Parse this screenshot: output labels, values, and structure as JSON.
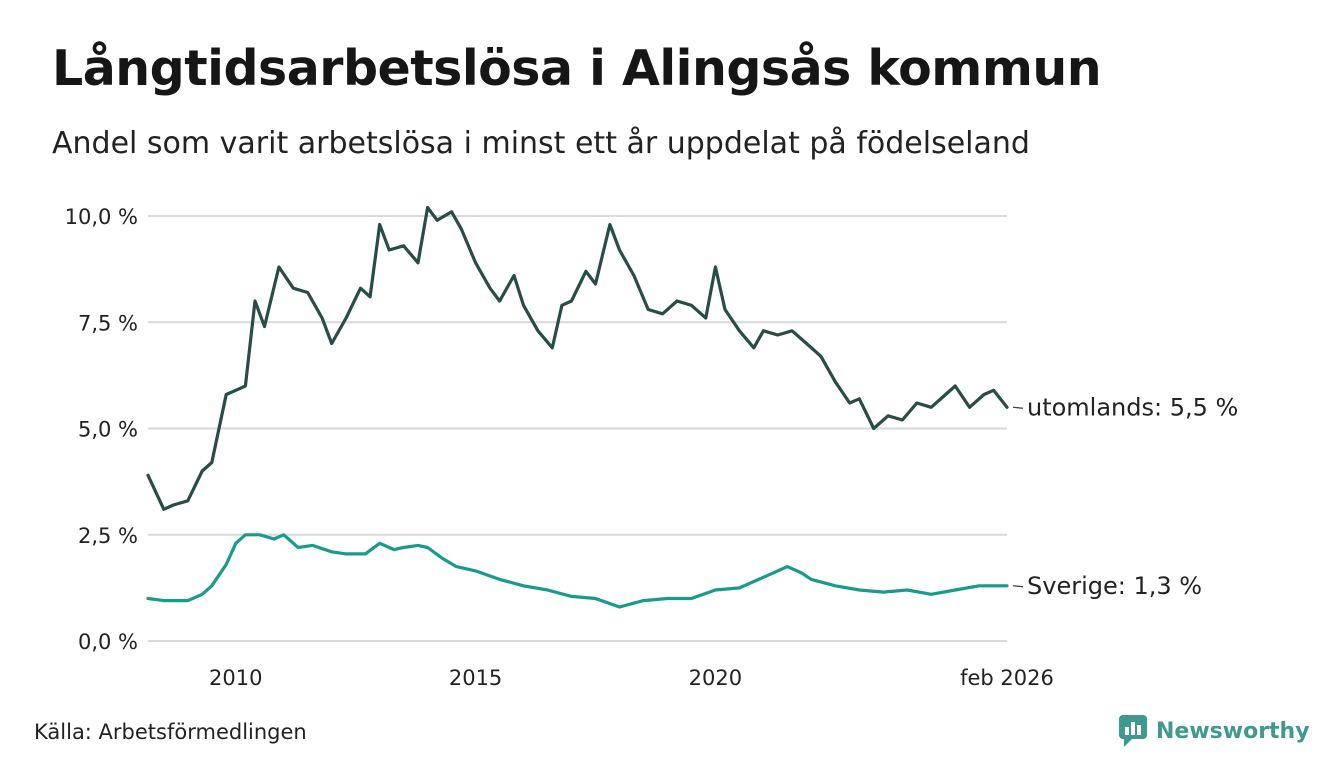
{
  "title": "Långtidsarbetslösa i Alingsås kommun",
  "subtitle": "Andel som varit arbetslösa i minst ett år uppdelat på födelseland",
  "source": "Källa: Arbetsförmedlingen",
  "brand": "Newsworthy",
  "colors": {
    "utomlands": "#284c46",
    "sverige": "#1a9a8a",
    "grid": "#d9d9d9",
    "brand": "#3f9a8d"
  },
  "chart_data": {
    "type": "line",
    "title": "Långtidsarbetslösa i Alingsås kommun",
    "ylabel": "",
    "xlabel": "",
    "ylim": [
      0,
      10
    ],
    "yticks": [
      0,
      2.5,
      5,
      7.5,
      10
    ],
    "ytick_labels": [
      "0,0 %",
      "2,5 %",
      "5,0 %",
      "7,5 %",
      "10,0 %"
    ],
    "xlim": [
      2008.17,
      2026.08
    ],
    "xticks": [
      2010,
      2015,
      2020,
      2026.08
    ],
    "xtick_labels": [
      "2010",
      "2015",
      "2020",
      "feb 2026"
    ],
    "series": [
      {
        "name": "utomlands",
        "end_label": "utomlands: 5,5 %",
        "x": [
          2008.17,
          2008.5,
          2008.7,
          2009.0,
          2009.3,
          2009.5,
          2009.8,
          2010.0,
          2010.2,
          2010.4,
          2010.6,
          2010.9,
          2011.2,
          2011.5,
          2011.8,
          2012.0,
          2012.3,
          2012.6,
          2012.8,
          2013.0,
          2013.2,
          2013.5,
          2013.8,
          2014.0,
          2014.2,
          2014.5,
          2014.7,
          2015.0,
          2015.3,
          2015.5,
          2015.8,
          2016.0,
          2016.3,
          2016.6,
          2016.8,
          2017.0,
          2017.3,
          2017.5,
          2017.8,
          2018.0,
          2018.3,
          2018.6,
          2018.9,
          2019.2,
          2019.5,
          2019.8,
          2020.0,
          2020.2,
          2020.5,
          2020.8,
          2021.0,
          2021.3,
          2021.6,
          2021.9,
          2022.2,
          2022.5,
          2022.8,
          2023.0,
          2023.3,
          2023.6,
          2023.9,
          2024.2,
          2024.5,
          2024.8,
          2025.0,
          2025.3,
          2025.6,
          2025.8,
          2026.08
        ],
        "values": [
          3.9,
          3.1,
          3.2,
          3.3,
          4.0,
          4.2,
          5.8,
          5.9,
          6.0,
          8.0,
          7.4,
          8.8,
          8.3,
          8.2,
          7.6,
          7.0,
          7.6,
          8.3,
          8.1,
          9.8,
          9.2,
          9.3,
          8.9,
          10.2,
          9.9,
          10.1,
          9.7,
          8.9,
          8.3,
          8.0,
          8.6,
          7.9,
          7.3,
          6.9,
          7.9,
          8.0,
          8.7,
          8.4,
          9.8,
          9.2,
          8.6,
          7.8,
          7.7,
          8.0,
          7.9,
          7.6,
          8.8,
          7.8,
          7.3,
          6.9,
          7.3,
          7.2,
          7.3,
          7.0,
          6.7,
          6.1,
          5.6,
          5.7,
          5.0,
          5.3,
          5.2,
          5.6,
          5.5,
          5.8,
          6.0,
          5.5,
          5.8,
          5.9,
          5.5
        ]
      },
      {
        "name": "Sverige",
        "end_label": "Sverige: 1,3 %",
        "x": [
          2008.17,
          2008.5,
          2008.8,
          2009.0,
          2009.3,
          2009.5,
          2009.8,
          2010.0,
          2010.2,
          2010.5,
          2010.8,
          2011.0,
          2011.3,
          2011.6,
          2012.0,
          2012.3,
          2012.7,
          2013.0,
          2013.3,
          2013.5,
          2013.8,
          2014.0,
          2014.3,
          2014.6,
          2015.0,
          2015.5,
          2016.0,
          2016.5,
          2017.0,
          2017.5,
          2018.0,
          2018.5,
          2019.0,
          2019.5,
          2020.0,
          2020.5,
          2021.0,
          2021.3,
          2021.5,
          2021.8,
          2022.0,
          2022.5,
          2023.0,
          2023.5,
          2024.0,
          2024.5,
          2025.0,
          2025.5,
          2026.08
        ],
        "values": [
          1.0,
          0.95,
          0.95,
          0.95,
          1.1,
          1.3,
          1.8,
          2.3,
          2.5,
          2.5,
          2.4,
          2.5,
          2.2,
          2.25,
          2.1,
          2.05,
          2.05,
          2.3,
          2.15,
          2.2,
          2.25,
          2.2,
          1.95,
          1.75,
          1.65,
          1.45,
          1.3,
          1.2,
          1.05,
          1.0,
          0.8,
          0.95,
          1.0,
          1.0,
          1.2,
          1.25,
          1.5,
          1.65,
          1.75,
          1.6,
          1.45,
          1.3,
          1.2,
          1.15,
          1.2,
          1.1,
          1.2,
          1.3,
          1.3
        ]
      }
    ]
  }
}
